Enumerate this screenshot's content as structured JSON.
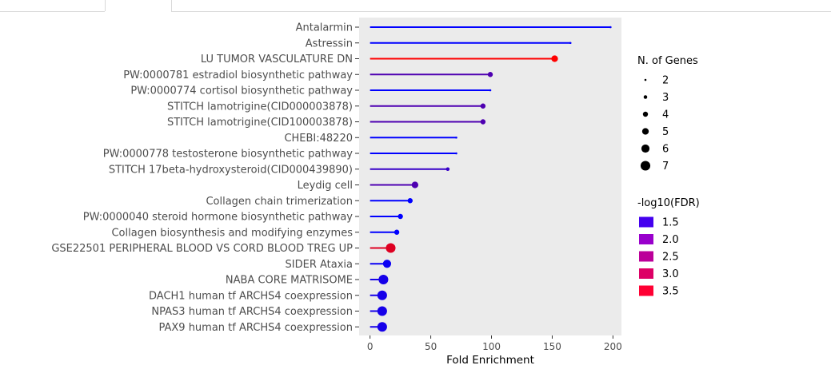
{
  "chart_data": {
    "type": "lollipop",
    "xlabel": "Fold Enrichment",
    "xlim": [
      -9,
      207
    ],
    "x_ticks": [
      0,
      50,
      100,
      150,
      200
    ],
    "categories": [
      "Antalarmin",
      "Astressin",
      "LU TUMOR VASCULATURE DN",
      "PW:0000781 estradiol biosynthetic pathway",
      "PW:0000774 cortisol biosynthetic pathway",
      "STITCH lamotrigine(CID000003878)",
      "STITCH lamotrigine(CID100003878)",
      "CHEBI:48220",
      "PW:0000778 testosterone biosynthetic pathway",
      "STITCH 17beta-hydroxysteroid(CID000439890)",
      "Leydig cell",
      "Collagen chain trimerization",
      "PW:0000040 steroid hormone biosynthetic pathway",
      "Collagen biosynthesis and modifying enzymes",
      "GSE22501 PERIPHERAL BLOOD VS CORD BLOOD TREG UP",
      "SIDER Ataxia",
      "NABA CORE MATRISOME",
      "DACH1 human tf ARCHS4 coexpression",
      "NPAS3 human tf ARCHS4 coexpression",
      "PAX9 human tf ARCHS4 coexpression"
    ],
    "fold_enrichment": [
      198,
      165,
      152,
      99,
      99,
      93,
      93,
      71,
      71,
      64,
      37,
      33,
      25,
      22,
      17,
      14,
      11,
      10,
      10,
      10
    ],
    "n_genes": [
      2,
      2,
      5,
      4,
      2,
      4,
      4,
      2,
      2,
      3,
      5,
      4,
      4,
      4,
      7,
      6,
      7,
      7,
      7,
      7
    ],
    "neg_log10_fdr": [
      1.3,
      1.3,
      3.6,
      2.0,
      1.3,
      2.0,
      2.0,
      1.3,
      1.3,
      1.8,
      2.0,
      1.3,
      1.3,
      1.3,
      3.3,
      1.4,
      1.5,
      1.5,
      1.5,
      1.5
    ],
    "size_legend": {
      "title": "N. of Genes",
      "entries": [
        "2",
        "3",
        "4",
        "5",
        "6",
        "7"
      ]
    },
    "color_legend": {
      "title": "-log10(FDR)",
      "entries": [
        "1.5",
        "2.0",
        "2.5",
        "3.0",
        "3.5"
      ],
      "colors": [
        "#4400ee",
        "#9900cc",
        "#bb0099",
        "#dd0066",
        "#ff0033"
      ],
      "low_color": "#0000ff",
      "high_color": "#ff0000",
      "range": [
        1.3,
        3.6
      ]
    },
    "grid": false,
    "legend_position": "right",
    "panel_background": "#ebebeb"
  }
}
